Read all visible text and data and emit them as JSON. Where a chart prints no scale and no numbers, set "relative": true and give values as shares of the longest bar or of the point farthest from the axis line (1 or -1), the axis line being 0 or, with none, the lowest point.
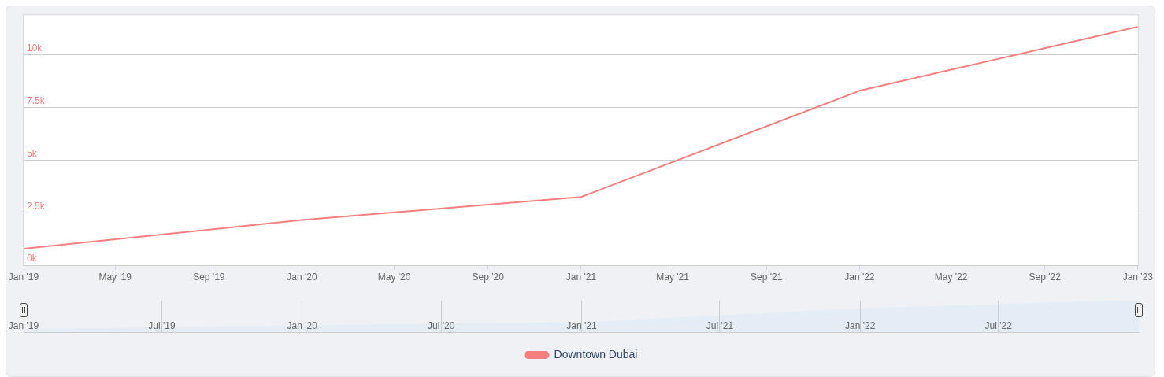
{
  "chart_data": [
    {
      "type": "line",
      "x": [
        "2019-01",
        "2020-01",
        "2021-01",
        "2022-01",
        "2023-01"
      ],
      "series": [
        {
          "name": "Downtown Dubai",
          "color": "#f37f7f",
          "values": [
            790,
            2150,
            3250,
            8300,
            11350
          ]
        }
      ],
      "xlim": [
        "2019-01",
        "2023-01"
      ],
      "xticks": [
        {
          "value": "2019-01",
          "label": "Jan '19"
        },
        {
          "value": "2019-05",
          "label": "May '19"
        },
        {
          "value": "2019-09",
          "label": "Sep '19"
        },
        {
          "value": "2020-01",
          "label": "Jan '20"
        },
        {
          "value": "2020-05",
          "label": "May '20"
        },
        {
          "value": "2020-09",
          "label": "Sep '20"
        },
        {
          "value": "2021-01",
          "label": "Jan '21"
        },
        {
          "value": "2021-05",
          "label": "May '21"
        },
        {
          "value": "2021-09",
          "label": "Sep '21"
        },
        {
          "value": "2022-01",
          "label": "Jan '22"
        },
        {
          "value": "2022-05",
          "label": "May '22"
        },
        {
          "value": "2022-09",
          "label": "Sep '22"
        },
        {
          "value": "2023-01",
          "label": "Jan '23"
        }
      ],
      "ylim": [
        0,
        11900
      ],
      "yticks": [
        {
          "value": 0,
          "label": "0k"
        },
        {
          "value": 2500,
          "label": "2.5k"
        },
        {
          "value": 5000,
          "label": "5k"
        },
        {
          "value": 7500,
          "label": "7.5k"
        },
        {
          "value": 10000,
          "label": "10k"
        }
      ],
      "grid": "y",
      "legend": "bottom"
    },
    {
      "type": "area",
      "x": [
        "2019-01",
        "2020-01",
        "2021-01",
        "2022-01",
        "2023-01"
      ],
      "series": [
        {
          "color": "#e4edf6",
          "values": [
            0.07,
            0.19,
            0.29,
            0.73,
            1
          ]
        }
      ],
      "relative": true,
      "xlim": [
        "2019-01",
        "2023-01"
      ],
      "xticks": [
        {
          "value": "2019-01",
          "label": "Jan '19"
        },
        {
          "value": "2019-07",
          "label": "Jul '19"
        },
        {
          "value": "2020-01",
          "label": "Jan '20"
        },
        {
          "value": "2020-07",
          "label": "Jul '20"
        },
        {
          "value": "2021-01",
          "label": "Jan '21"
        },
        {
          "value": "2021-07",
          "label": "Jul '21"
        },
        {
          "value": "2022-01",
          "label": "Jan '22"
        },
        {
          "value": "2022-07",
          "label": "Jul '22"
        }
      ],
      "grid": "x",
      "tick_labels": "x"
    }
  ]
}
